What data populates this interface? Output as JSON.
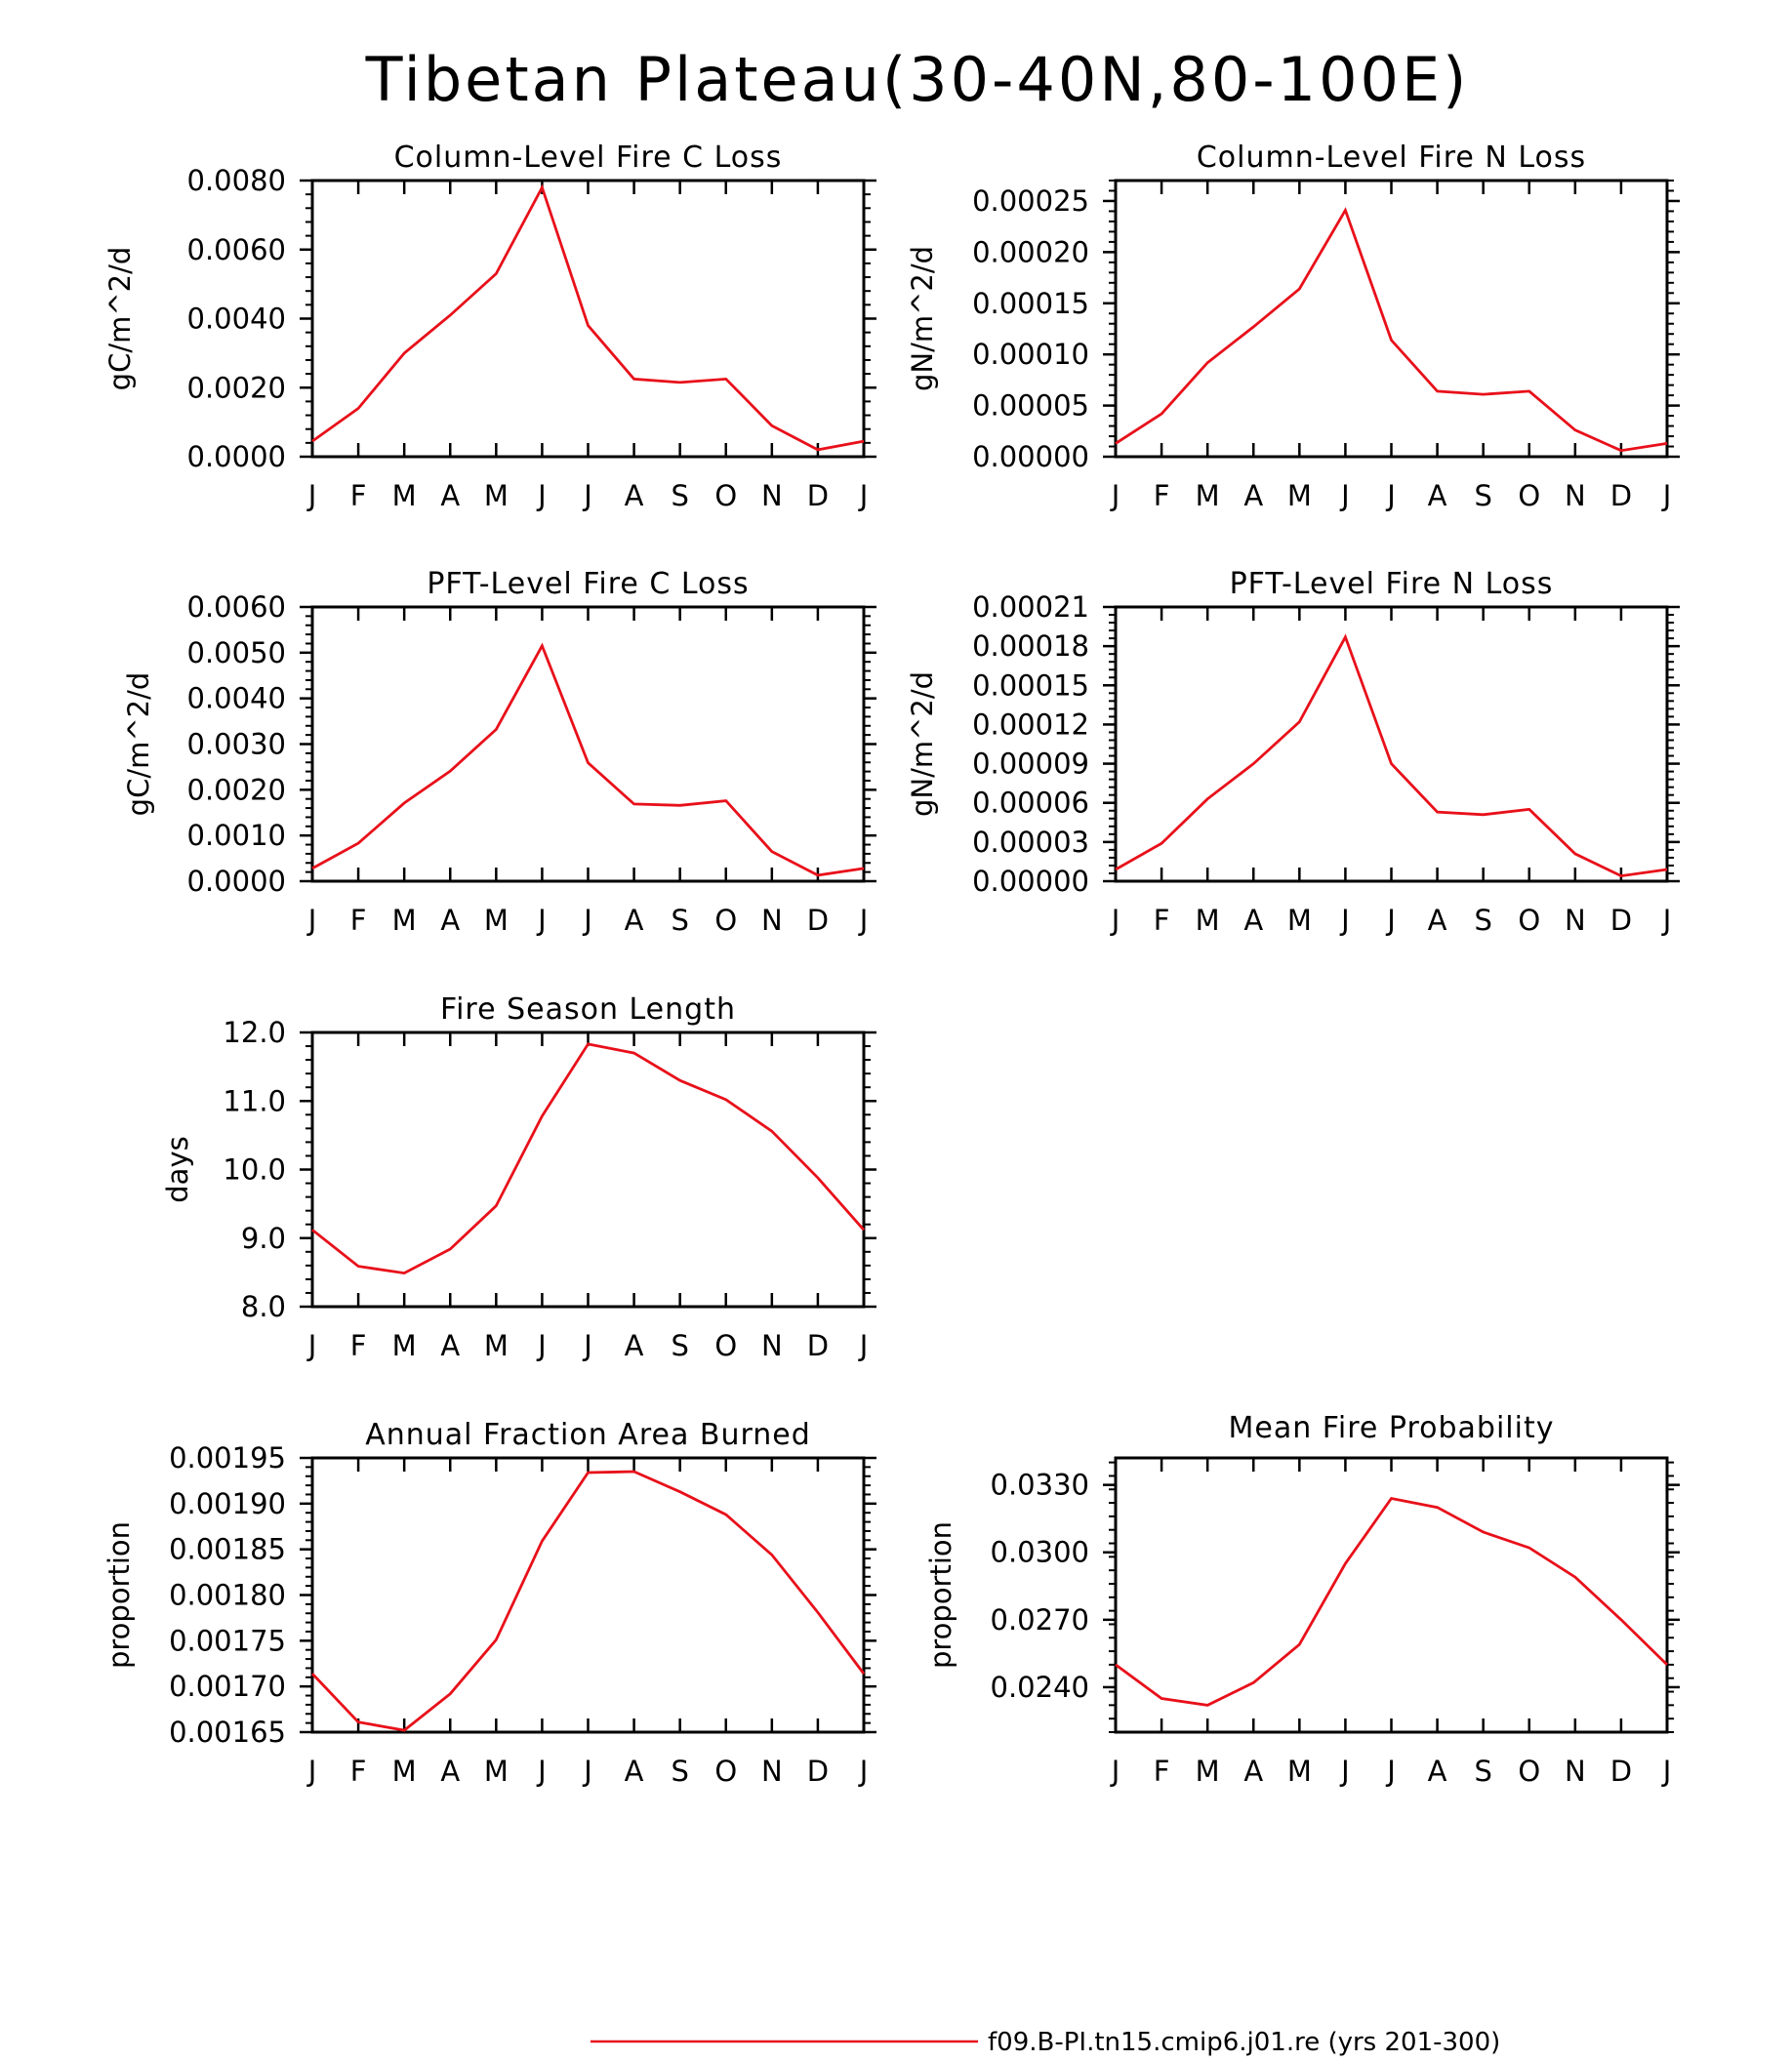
{
  "figure_title": "Tibetan Plateau(30-40N,80-100E)",
  "legend": {
    "label": "f09.B-PI.tn15.cmip6.j01.re (yrs 201-300)",
    "color": "#e8101a"
  },
  "month_labels": [
    "J",
    "F",
    "M",
    "A",
    "M",
    "J",
    "J",
    "A",
    "S",
    "O",
    "N",
    "D",
    "J"
  ],
  "chart_data": [
    {
      "type": "line",
      "title": "Column-Level Fire C Loss",
      "ylabel": "gC/m^2/d",
      "ylim": [
        0,
        0.008
      ],
      "yticks": [
        "0.0000",
        "0.0020",
        "0.0040",
        "0.0060",
        "0.0080"
      ],
      "yticks_values": [
        0,
        0.002,
        0.004,
        0.006,
        0.008
      ],
      "series": [
        {
          "values": [
            0.00045,
            0.0014,
            0.003,
            0.0041,
            0.0053,
            0.0078,
            0.0038,
            0.00225,
            0.00215,
            0.00225,
            0.0009,
            0.0002,
            0.00045
          ]
        }
      ]
    },
    {
      "type": "line",
      "title": "Column-Level Fire N Loss",
      "ylabel": "gN/m^2/d",
      "ylim": [
        0,
        0.00027
      ],
      "yticks": [
        "0.00000",
        "0.00005",
        "0.00010",
        "0.00015",
        "0.00020",
        "0.00025"
      ],
      "yticks_values": [
        0,
        5e-05,
        0.0001,
        0.00015,
        0.0002,
        0.00025
      ],
      "series": [
        {
          "values": [
            1.3e-05,
            4.2e-05,
            9.2e-05,
            0.000127,
            0.000164,
            0.000241,
            0.000114,
            6.4e-05,
            6.1e-05,
            6.4e-05,
            2.6e-05,
            6e-06,
            1.3e-05
          ]
        }
      ]
    },
    {
      "type": "line",
      "title": "PFT-Level Fire C Loss",
      "ylabel": "gC/m^2/d",
      "ylim": [
        0,
        0.006
      ],
      "yticks": [
        "0.0000",
        "0.0010",
        "0.0020",
        "0.0030",
        "0.0040",
        "0.0050",
        "0.0060"
      ],
      "yticks_values": [
        0,
        0.001,
        0.002,
        0.003,
        0.004,
        0.005,
        0.006
      ],
      "series": [
        {
          "values": [
            0.00028,
            0.00083,
            0.00171,
            0.00241,
            0.00332,
            0.00515,
            0.00259,
            0.00169,
            0.00166,
            0.00176,
            0.00065,
            0.00013,
            0.00028
          ]
        }
      ]
    },
    {
      "type": "line",
      "title": "PFT-Level Fire N Loss",
      "ylabel": "gN/m^2/d",
      "ylim": [
        0,
        0.00021
      ],
      "yticks": [
        "0.00000",
        "0.00003",
        "0.00006",
        "0.00009",
        "0.00012",
        "0.00015",
        "0.00018",
        "0.00021"
      ],
      "yticks_values": [
        0,
        3e-05,
        6e-05,
        9e-05,
        0.00012,
        0.00015,
        0.00018,
        0.00021
      ],
      "series": [
        {
          "values": [
            9e-06,
            2.9e-05,
            6.3e-05,
            9e-05,
            0.000122,
            0.000187,
            9e-05,
            5.3e-05,
            5.1e-05,
            5.5e-05,
            2.1e-05,
            4e-06,
            9e-06
          ]
        }
      ]
    },
    {
      "type": "line",
      "title": "Fire Season Length",
      "ylabel": "days",
      "ylim": [
        8.0,
        12.0
      ],
      "yticks": [
        "8.0",
        "9.0",
        "10.0",
        "11.0",
        "12.0"
      ],
      "yticks_values": [
        8.0,
        9.0,
        10.0,
        11.0,
        12.0
      ],
      "series": [
        {
          "values": [
            9.12,
            8.59,
            8.49,
            8.84,
            9.47,
            10.78,
            11.83,
            11.7,
            11.3,
            11.02,
            10.56,
            9.88,
            9.12
          ]
        }
      ]
    },
    {
      "type": "line",
      "title": "Annual Fraction Area Burned",
      "ylabel": "proportion",
      "ylim": [
        0.00165,
        0.00195
      ],
      "yticks": [
        "0.00165",
        "0.00170",
        "0.00175",
        "0.00180",
        "0.00185",
        "0.00190",
        "0.00195"
      ],
      "yticks_values": [
        0.00165,
        0.0017,
        0.00175,
        0.0018,
        0.00185,
        0.0019,
        0.00195
      ],
      "series": [
        {
          "values": [
            0.001714,
            0.001661,
            0.001652,
            0.001692,
            0.001751,
            0.001859,
            0.001934,
            0.001935,
            0.001913,
            0.001888,
            0.001844,
            0.001781,
            0.001714
          ]
        }
      ]
    },
    {
      "type": "line",
      "title": "Mean Fire Probability",
      "ylabel": "proportion",
      "ylim": [
        0.022,
        0.0342
      ],
      "yticks": [
        "0.0240",
        "0.0270",
        "0.0300",
        "0.0330"
      ],
      "yticks_values": [
        0.024,
        0.027,
        0.03,
        0.033
      ],
      "series": [
        {
          "values": [
            0.025,
            0.0235,
            0.0232,
            0.0242,
            0.0259,
            0.0295,
            0.0324,
            0.032,
            0.0309,
            0.0302,
            0.0289,
            0.027,
            0.025
          ]
        }
      ]
    }
  ]
}
